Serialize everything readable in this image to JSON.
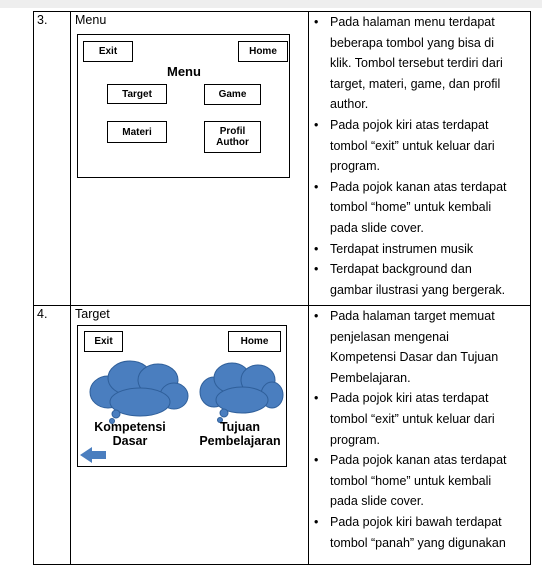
{
  "rows": [
    {
      "number": "3.",
      "title": "Menu",
      "wireframe": {
        "heading": "Menu",
        "buttons": [
          "Exit",
          "Home",
          "Target",
          "Game",
          "Materi",
          "Profil Author"
        ]
      },
      "bullets": [
        [
          "Pada halaman menu terdapat",
          "beberapa tombol yang bisa di",
          "klik. Tombol tersebut terdiri dari",
          "target, materi, game, dan profil",
          "author."
        ],
        [
          "Pada pojok kiri atas terdapat",
          "tombol “exit” untuk keluar dari",
          "program."
        ],
        [
          "Pada pojok kanan atas terdapat",
          "tombol “home” untuk kembali",
          "pada slide cover."
        ],
        [
          "Terdapat instrumen musik"
        ],
        [
          "Terdapat background dan",
          "gambar ilustrasi yang bergerak."
        ]
      ]
    },
    {
      "number": "4.",
      "title": "Target",
      "wireframe": {
        "buttons": [
          "Exit",
          "Home"
        ],
        "captions": [
          "Kompetensi Dasar",
          "Tujuan Pembelajaran"
        ]
      },
      "bullets": [
        [
          "Pada halaman target memuat",
          "penjelasan mengenai",
          "Kompetensi Dasar dan Tujuan",
          "Pembelajaran."
        ],
        [
          "Pada pojok kiri atas terdapat",
          "tombol “exit” untuk keluar dari",
          "program."
        ],
        [
          "Pada pojok kanan atas terdapat",
          "tombol “home” untuk kembali",
          "pada slide cover."
        ],
        [
          "Pada pojok kiri bawah terdapat",
          "tombol “panah” yang digunakan"
        ]
      ]
    }
  ]
}
